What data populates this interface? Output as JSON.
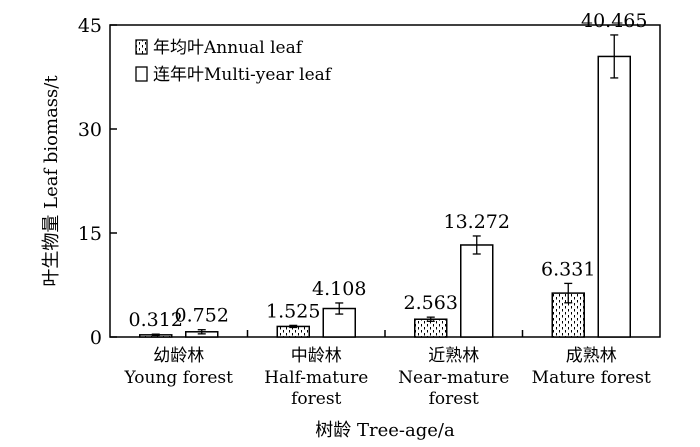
{
  "chart_data": {
    "type": "bar",
    "title": "",
    "xlabel": "树龄 Tree-age/a",
    "ylabel": "叶生物量 Leaf biomass/t",
    "ylim": [
      0,
      45
    ],
    "yticks": [
      0,
      15,
      30,
      45
    ],
    "legend_position": "top-left",
    "categories": [
      {
        "cn": "幼龄林",
        "en": [
          "Young forest"
        ]
      },
      {
        "cn": "中龄林",
        "en": [
          "Half-mature",
          "forest"
        ]
      },
      {
        "cn": "近熟林",
        "en": [
          "Near-mature",
          "forest"
        ]
      },
      {
        "cn": "成熟林",
        "en": [
          "Mature forest"
        ]
      }
    ],
    "series": [
      {
        "name": "年均叶Annual leaf",
        "fill": "pattern",
        "values": [
          0.312,
          1.525,
          2.563,
          6.331
        ],
        "labels": [
          "0.312",
          "1.525",
          "2.563",
          "6.331"
        ],
        "errors": [
          0.1,
          0.15,
          0.3,
          1.4
        ]
      },
      {
        "name": "连年叶Multi-year leaf",
        "fill": "plain",
        "values": [
          0.752,
          4.108,
          13.272,
          40.465
        ],
        "labels": [
          "0.752",
          "4.108",
          "13.272",
          "40.465"
        ],
        "errors": [
          0.3,
          0.8,
          1.3,
          3.1
        ]
      }
    ]
  }
}
